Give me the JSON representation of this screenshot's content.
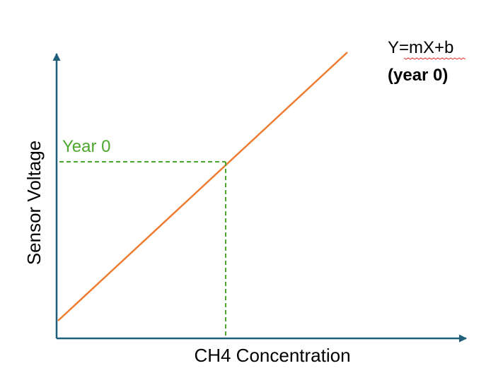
{
  "chart_data": {
    "type": "line",
    "title": "",
    "xlabel": "CH4 Concentration",
    "ylabel": "Sensor Voltage",
    "grid": false,
    "equation": "Y=mX+b",
    "equation_note": "(year 0)",
    "callout_label": "Year 0",
    "colors": {
      "axis": "#1f5f7a",
      "line": "#ed7d31",
      "callout": "#4ea72e",
      "text": "#000000"
    }
  }
}
